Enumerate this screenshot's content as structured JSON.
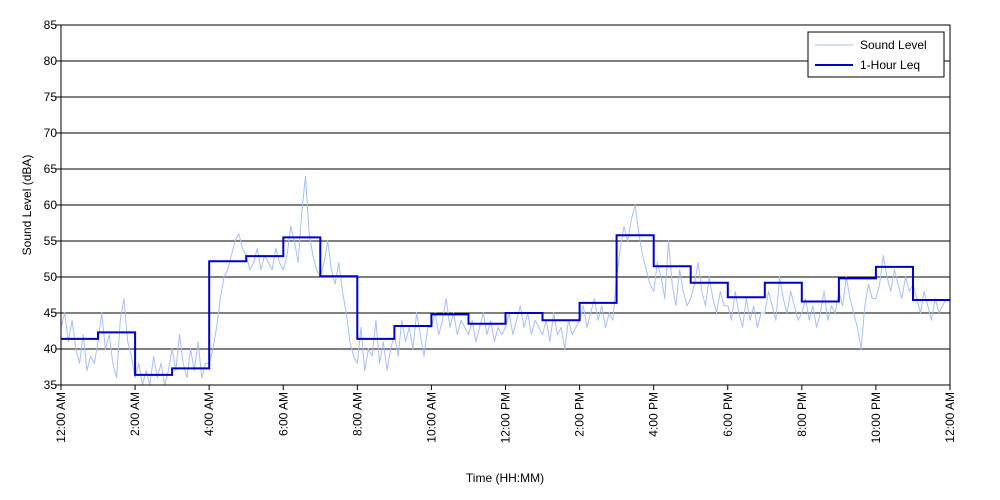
{
  "chart_data": {
    "type": "line",
    "xlabel": "Time (HH:MM)",
    "ylabel": "Sound Level (dBA)",
    "xlim": [
      0,
      24
    ],
    "ylim": [
      35,
      85
    ],
    "y_ticks": [
      35,
      40,
      45,
      50,
      55,
      60,
      65,
      70,
      75,
      80,
      85
    ],
    "x_tick_hours": [
      0,
      2,
      4,
      6,
      8,
      10,
      12,
      14,
      16,
      18,
      20,
      22,
      24
    ],
    "x_tick_labels": [
      "12:00 AM",
      "2:00 AM",
      "4:00 AM",
      "6:00 AM",
      "8:00 AM",
      "10:00 AM",
      "12:00 PM",
      "2:00 PM",
      "4:00 PM",
      "6:00 PM",
      "8:00 PM",
      "10:00 PM",
      "12:00 AM"
    ],
    "grid": "horizontal",
    "legend_position": "top-right",
    "colors": {
      "sound_level": "#a8c0f0",
      "leq": "#0000cc"
    },
    "series": [
      {
        "name": "Sound Level",
        "style": "thin-light-line",
        "points": [
          [
            0.0,
            43
          ],
          [
            0.1,
            45
          ],
          [
            0.2,
            41
          ],
          [
            0.3,
            44
          ],
          [
            0.4,
            40
          ],
          [
            0.5,
            38
          ],
          [
            0.6,
            42
          ],
          [
            0.7,
            37
          ],
          [
            0.8,
            39
          ],
          [
            0.9,
            38
          ],
          [
            1.0,
            41
          ],
          [
            1.1,
            45
          ],
          [
            1.2,
            40
          ],
          [
            1.3,
            42
          ],
          [
            1.4,
            38
          ],
          [
            1.5,
            36
          ],
          [
            1.6,
            44
          ],
          [
            1.7,
            47
          ],
          [
            1.8,
            41
          ],
          [
            1.9,
            39
          ],
          [
            2.0,
            36
          ],
          [
            2.1,
            38
          ],
          [
            2.2,
            35
          ],
          [
            2.3,
            37
          ],
          [
            2.4,
            35
          ],
          [
            2.5,
            39
          ],
          [
            2.6,
            36
          ],
          [
            2.7,
            38
          ],
          [
            2.8,
            35
          ],
          [
            2.9,
            37
          ],
          [
            3.0,
            40
          ],
          [
            3.1,
            37
          ],
          [
            3.2,
            42
          ],
          [
            3.3,
            38
          ],
          [
            3.4,
            36
          ],
          [
            3.5,
            40
          ],
          [
            3.6,
            37
          ],
          [
            3.7,
            41
          ],
          [
            3.8,
            36
          ],
          [
            3.9,
            38
          ],
          [
            4.0,
            38
          ],
          [
            4.1,
            40
          ],
          [
            4.2,
            43
          ],
          [
            4.3,
            47
          ],
          [
            4.4,
            50
          ],
          [
            4.5,
            51
          ],
          [
            4.6,
            53
          ],
          [
            4.7,
            55
          ],
          [
            4.8,
            56
          ],
          [
            4.9,
            54
          ],
          [
            5.0,
            53
          ],
          [
            5.1,
            51
          ],
          [
            5.2,
            52
          ],
          [
            5.3,
            54
          ],
          [
            5.4,
            51
          ],
          [
            5.5,
            53
          ],
          [
            5.6,
            52
          ],
          [
            5.7,
            51
          ],
          [
            5.8,
            54
          ],
          [
            5.9,
            52
          ],
          [
            6.0,
            51
          ],
          [
            6.1,
            53
          ],
          [
            6.2,
            57
          ],
          [
            6.3,
            55
          ],
          [
            6.4,
            52
          ],
          [
            6.5,
            59
          ],
          [
            6.6,
            64
          ],
          [
            6.7,
            56
          ],
          [
            6.8,
            53
          ],
          [
            6.9,
            51
          ],
          [
            7.0,
            50
          ],
          [
            7.1,
            52
          ],
          [
            7.2,
            55
          ],
          [
            7.3,
            51
          ],
          [
            7.4,
            49
          ],
          [
            7.5,
            52
          ],
          [
            7.6,
            48
          ],
          [
            7.7,
            45
          ],
          [
            7.8,
            41
          ],
          [
            7.9,
            39
          ],
          [
            8.0,
            38
          ],
          [
            8.1,
            43
          ],
          [
            8.2,
            37
          ],
          [
            8.3,
            40
          ],
          [
            8.4,
            39
          ],
          [
            8.5,
            44
          ],
          [
            8.6,
            38
          ],
          [
            8.7,
            41
          ],
          [
            8.8,
            37
          ],
          [
            8.9,
            40
          ],
          [
            9.0,
            42
          ],
          [
            9.1,
            39
          ],
          [
            9.2,
            44
          ],
          [
            9.3,
            41
          ],
          [
            9.4,
            43
          ],
          [
            9.5,
            40
          ],
          [
            9.6,
            45
          ],
          [
            9.7,
            42
          ],
          [
            9.8,
            39
          ],
          [
            9.9,
            43
          ],
          [
            10.0,
            43
          ],
          [
            10.1,
            45
          ],
          [
            10.2,
            42
          ],
          [
            10.3,
            44
          ],
          [
            10.4,
            47
          ],
          [
            10.5,
            43
          ],
          [
            10.6,
            45
          ],
          [
            10.7,
            42
          ],
          [
            10.8,
            44
          ],
          [
            10.9,
            43
          ],
          [
            11.0,
            42
          ],
          [
            11.1,
            44
          ],
          [
            11.2,
            41
          ],
          [
            11.3,
            43
          ],
          [
            11.4,
            45
          ],
          [
            11.5,
            42
          ],
          [
            11.6,
            44
          ],
          [
            11.7,
            41
          ],
          [
            11.8,
            43
          ],
          [
            11.9,
            42
          ],
          [
            12.0,
            43
          ],
          [
            12.1,
            45
          ],
          [
            12.2,
            42
          ],
          [
            12.3,
            44
          ],
          [
            12.4,
            46
          ],
          [
            12.5,
            43
          ],
          [
            12.6,
            45
          ],
          [
            12.7,
            42
          ],
          [
            12.8,
            44
          ],
          [
            12.9,
            43
          ],
          [
            13.0,
            42
          ],
          [
            13.1,
            44
          ],
          [
            13.2,
            41
          ],
          [
            13.3,
            45
          ],
          [
            13.4,
            42
          ],
          [
            13.5,
            43
          ],
          [
            13.6,
            40
          ],
          [
            13.7,
            44
          ],
          [
            13.8,
            42
          ],
          [
            13.9,
            43
          ],
          [
            14.0,
            44
          ],
          [
            14.1,
            46
          ],
          [
            14.2,
            43
          ],
          [
            14.3,
            45
          ],
          [
            14.4,
            47
          ],
          [
            14.5,
            44
          ],
          [
            14.6,
            46
          ],
          [
            14.7,
            43
          ],
          [
            14.8,
            45
          ],
          [
            14.9,
            44
          ],
          [
            15.0,
            50
          ],
          [
            15.1,
            54
          ],
          [
            15.2,
            57
          ],
          [
            15.3,
            55
          ],
          [
            15.4,
            58
          ],
          [
            15.5,
            60
          ],
          [
            15.6,
            56
          ],
          [
            15.7,
            53
          ],
          [
            15.8,
            51
          ],
          [
            15.9,
            49
          ],
          [
            16.0,
            48
          ],
          [
            16.1,
            52
          ],
          [
            16.2,
            50
          ],
          [
            16.3,
            47
          ],
          [
            16.4,
            55
          ],
          [
            16.5,
            49
          ],
          [
            16.6,
            46
          ],
          [
            16.7,
            51
          ],
          [
            16.8,
            48
          ],
          [
            16.9,
            46
          ],
          [
            17.0,
            47
          ],
          [
            17.1,
            49
          ],
          [
            17.2,
            52
          ],
          [
            17.3,
            48
          ],
          [
            17.4,
            46
          ],
          [
            17.5,
            50
          ],
          [
            17.6,
            47
          ],
          [
            17.7,
            45
          ],
          [
            17.8,
            48
          ],
          [
            17.9,
            46
          ],
          [
            18.0,
            46
          ],
          [
            18.1,
            44
          ],
          [
            18.2,
            48
          ],
          [
            18.3,
            45
          ],
          [
            18.4,
            43
          ],
          [
            18.5,
            47
          ],
          [
            18.6,
            44
          ],
          [
            18.7,
            46
          ],
          [
            18.8,
            43
          ],
          [
            18.9,
            45
          ],
          [
            19.0,
            45
          ],
          [
            19.1,
            48
          ],
          [
            19.2,
            46
          ],
          [
            19.3,
            44
          ],
          [
            19.4,
            50
          ],
          [
            19.5,
            47
          ],
          [
            19.6,
            45
          ],
          [
            19.7,
            48
          ],
          [
            19.8,
            46
          ],
          [
            19.9,
            44
          ],
          [
            20.0,
            45
          ],
          [
            20.1,
            47
          ],
          [
            20.2,
            44
          ],
          [
            20.3,
            46
          ],
          [
            20.4,
            43
          ],
          [
            20.5,
            45
          ],
          [
            20.6,
            48
          ],
          [
            20.7,
            44
          ],
          [
            20.8,
            46
          ],
          [
            20.9,
            45
          ],
          [
            21.0,
            48
          ],
          [
            21.1,
            46
          ],
          [
            21.2,
            50
          ],
          [
            21.3,
            47
          ],
          [
            21.4,
            45
          ],
          [
            21.5,
            43
          ],
          [
            21.6,
            40
          ],
          [
            21.7,
            46
          ],
          [
            21.8,
            49
          ],
          [
            21.9,
            47
          ],
          [
            22.0,
            47
          ],
          [
            22.1,
            49
          ],
          [
            22.2,
            53
          ],
          [
            22.3,
            50
          ],
          [
            22.4,
            48
          ],
          [
            22.5,
            51
          ],
          [
            22.6,
            49
          ],
          [
            22.7,
            47
          ],
          [
            22.8,
            50
          ],
          [
            22.9,
            48
          ],
          [
            23.0,
            49
          ],
          [
            23.1,
            47
          ],
          [
            23.2,
            45
          ],
          [
            23.3,
            48
          ],
          [
            23.4,
            46
          ],
          [
            23.5,
            44
          ],
          [
            23.6,
            47
          ],
          [
            23.7,
            45
          ],
          [
            23.8,
            46
          ],
          [
            23.9,
            47
          ]
        ]
      },
      {
        "name": "1-Hour Leq",
        "style": "step",
        "hourly_values": [
          41.4,
          42.3,
          36.4,
          37.3,
          52.2,
          52.9,
          55.5,
          50.1,
          41.4,
          43.2,
          44.8,
          43.5,
          45.0,
          44.0,
          46.4,
          55.8,
          51.5,
          49.2,
          47.2,
          49.2,
          46.6,
          49.8,
          51.4,
          46.8
        ]
      }
    ]
  }
}
